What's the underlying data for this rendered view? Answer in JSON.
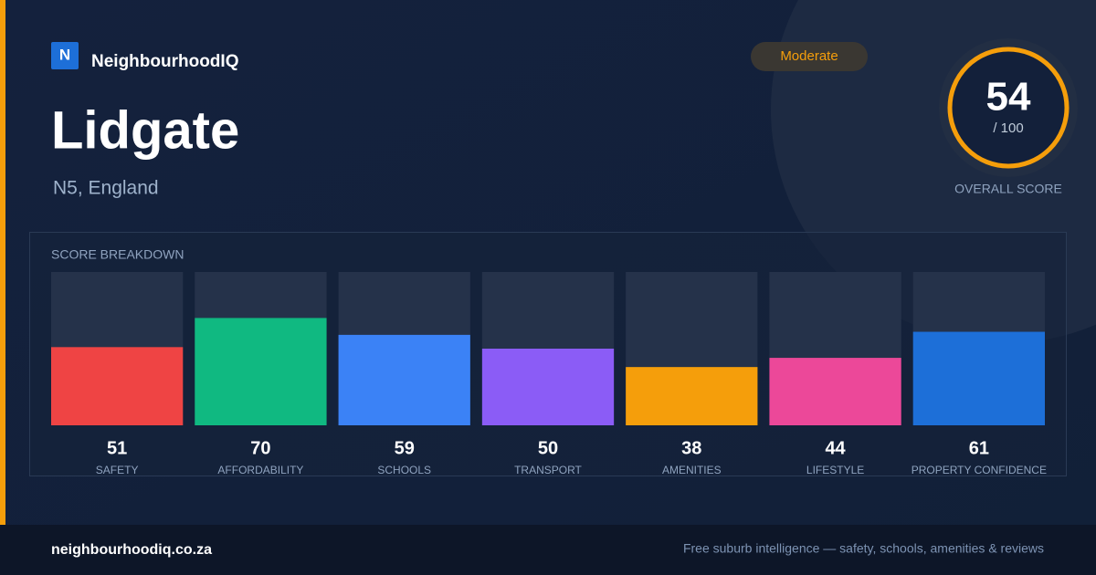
{
  "brand": {
    "logo": "N",
    "name": "NeighbourhoodIQ"
  },
  "place": {
    "name": "Lidgate",
    "location": "N5, England"
  },
  "rating": "Moderate",
  "overall": {
    "score": 54,
    "out_of": "/ 100",
    "label": "OVERALL SCORE"
  },
  "chart_data": {
    "type": "bar",
    "title": "SCORE BREAKDOWN",
    "categories": [
      "SAFETY",
      "AFFORDABILITY",
      "SCHOOLS",
      "TRANSPORT",
      "AMENITIES",
      "LIFESTYLE",
      "PROPERTY CONFIDENCE"
    ],
    "values": [
      51,
      70,
      59,
      50,
      38,
      44,
      61
    ],
    "colors": [
      "#ef4444",
      "#10b981",
      "#3b82f6",
      "#8b5cf6",
      "#f59e0b",
      "#ec4899",
      "#1d6fd8"
    ],
    "ylim": [
      0,
      100
    ]
  },
  "footer": {
    "site": "neighbourhoodiq.co.za",
    "tagline": "Free suburb intelligence — safety, schools, amenities & reviews"
  }
}
